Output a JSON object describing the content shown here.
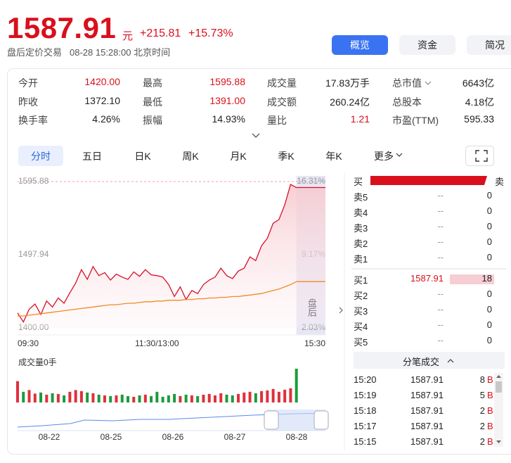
{
  "header": {
    "price": "1587.91",
    "unit": "元",
    "change": "+215.81",
    "change_pct": "+15.73%",
    "status": "盘后定价交易",
    "time": "08-28 15:28:00 北京时间",
    "buttons": [
      "概览",
      "资金",
      "简况"
    ],
    "active_button": 0
  },
  "stats": [
    [
      {
        "label": "今开",
        "value": "1420.00",
        "color": "#d9101c"
      },
      {
        "label": "最高",
        "value": "1595.88",
        "color": "#d9101c"
      },
      {
        "label": "成交量",
        "value": "17.83万手",
        "color": "#222222"
      },
      {
        "label": "总市值",
        "value": "6643亿",
        "color": "#222222"
      }
    ],
    [
      {
        "label": "昨收",
        "value": "1372.10",
        "color": "#222222"
      },
      {
        "label": "最低",
        "value": "1391.00",
        "color": "#d9101c"
      },
      {
        "label": "成交额",
        "value": "260.24亿",
        "color": "#222222"
      },
      {
        "label": "总股本",
        "value": "4.18亿",
        "color": "#222222"
      }
    ],
    [
      {
        "label": "换手率",
        "value": "4.26%",
        "color": "#222222"
      },
      {
        "label": "振幅",
        "value": "14.93%",
        "color": "#222222"
      },
      {
        "label": "量比",
        "value": "1.21",
        "color": "#d9101c"
      },
      {
        "label": "市盈(TTM)",
        "value": "595.33",
        "color": "#222222"
      }
    ]
  ],
  "tabs": {
    "items": [
      "分时",
      "五日",
      "日K",
      "周K",
      "月K",
      "季K",
      "年K",
      "更多"
    ],
    "active": 0
  },
  "order_book": {
    "buy_label": "买",
    "sell_label": "卖",
    "asks": [
      {
        "label": "卖5",
        "price": "--",
        "qty": "0"
      },
      {
        "label": "卖4",
        "price": "--",
        "qty": "0"
      },
      {
        "label": "卖3",
        "price": "--",
        "qty": "0"
      },
      {
        "label": "卖2",
        "price": "--",
        "qty": "0"
      },
      {
        "label": "卖1",
        "price": "--",
        "qty": "0"
      }
    ],
    "bids": [
      {
        "label": "买1",
        "price": "1587.91",
        "qty": "18"
      },
      {
        "label": "买2",
        "price": "--",
        "qty": "0"
      },
      {
        "label": "买3",
        "price": "--",
        "qty": "0"
      },
      {
        "label": "买4",
        "price": "--",
        "qty": "0"
      },
      {
        "label": "买5",
        "price": "--",
        "qty": "0"
      }
    ]
  },
  "trades": {
    "title": "分笔成交",
    "rows": [
      [
        "15:20",
        "1587.91",
        "8",
        "B"
      ],
      [
        "15:19",
        "1587.91",
        "5",
        "B"
      ],
      [
        "15:18",
        "1587.91",
        "2",
        "B"
      ],
      [
        "15:17",
        "1587.91",
        "2",
        "B"
      ],
      [
        "15:15",
        "1587.91",
        "2",
        "B"
      ]
    ]
  },
  "chart_data": {
    "type": "line",
    "xlim": [
      0,
      53
    ],
    "xticks": [
      {
        "value": 0,
        "label": "09:30"
      },
      {
        "value": 24,
        "label": "11:30/13:00"
      },
      {
        "value": 53,
        "label": "15:30"
      }
    ],
    "ylim": [
      1400,
      1595.88
    ],
    "yticks": [
      1595.88,
      1497.94,
      {
        "value": 1400,
        "label": "1400.00"
      }
    ],
    "y2lim": [
      2.03,
      16.31
    ],
    "y2ticks": [
      {
        "value": 16.31,
        "label": "16.31%"
      },
      {
        "value": 9.17,
        "label": "9.17%"
      },
      {
        "value": 2.03,
        "label": "2.03%"
      }
    ],
    "after_hours_start": 48,
    "after_hours_label": "盘后",
    "series": [
      {
        "color": "#d6102a",
        "values": [
          1420,
          1408,
          1425,
          1432,
          1418,
          1436,
          1428,
          1440,
          1433,
          1447,
          1460,
          1478,
          1465,
          1482,
          1470,
          1474,
          1464,
          1472,
          1468,
          1465,
          1475,
          1469,
          1478,
          1471,
          1470,
          1468,
          1458,
          1442,
          1455,
          1438,
          1450,
          1446,
          1458,
          1464,
          1468,
          1480,
          1470,
          1466,
          1476,
          1480,
          1495,
          1490,
          1510,
          1520,
          1540,
          1545,
          1565,
          1592,
          1587.91,
          1587.91,
          1587.91,
          1587.91,
          1587.91,
          1587.91
        ]
      },
      {
        "color": "#f08a24",
        "values": [
          1416,
          1416,
          1417,
          1418,
          1419,
          1420,
          1421,
          1422,
          1423,
          1424,
          1425,
          1426,
          1427,
          1428,
          1429,
          1430,
          1431,
          1431,
          1432,
          1433,
          1433,
          1434,
          1435,
          1435,
          1436,
          1436,
          1437,
          1437,
          1437,
          1438,
          1438,
          1439,
          1439,
          1440,
          1440,
          1441,
          1441,
          1442,
          1442,
          1443,
          1444,
          1445,
          1446,
          1448,
          1450,
          1452,
          1455,
          1458,
          1462,
          1462,
          1462,
          1462,
          1462,
          1462
        ]
      }
    ],
    "volume": {
      "label": "成交量0手",
      "values": [
        60,
        30,
        35,
        25,
        28,
        22,
        26,
        24,
        20,
        30,
        35,
        32,
        28,
        26,
        22,
        20,
        18,
        20,
        22,
        18,
        16,
        20,
        22,
        18,
        30,
        16,
        20,
        24,
        18,
        22,
        20,
        18,
        22,
        24,
        20,
        26,
        22,
        20,
        24,
        28,
        30,
        26,
        32,
        34,
        38,
        30,
        36,
        40,
        95
      ]
    },
    "navigator_dates": [
      "08-22",
      "08-25",
      "08-26",
      "08-27",
      "08-28"
    ]
  }
}
